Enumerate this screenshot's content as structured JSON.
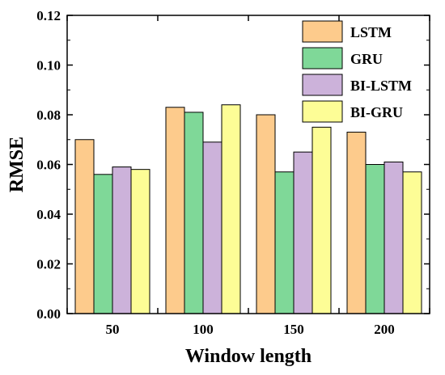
{
  "chart_data": {
    "type": "bar",
    "title": "",
    "xlabel": "Window length",
    "ylabel": "RMSE",
    "categories": [
      "50",
      "100",
      "150",
      "200"
    ],
    "ylim": [
      0,
      0.12
    ],
    "yticks": [
      "0.00",
      "0.02",
      "0.04",
      "0.06",
      "0.08",
      "0.10",
      "0.12"
    ],
    "grid": false,
    "legend_position": "top-right",
    "series": [
      {
        "name": "LSTM",
        "color": "#FDCB8C",
        "values": [
          0.07,
          0.083,
          0.08,
          0.073
        ]
      },
      {
        "name": "GRU",
        "color": "#7FD898",
        "values": [
          0.056,
          0.081,
          0.057,
          0.06
        ]
      },
      {
        "name": "BI-LSTM",
        "color": "#CCB2DA",
        "values": [
          0.059,
          0.069,
          0.065,
          0.061
        ]
      },
      {
        "name": "BI-GRU",
        "color": "#FDFD96",
        "values": [
          0.058,
          0.084,
          0.075,
          0.057
        ]
      }
    ]
  }
}
